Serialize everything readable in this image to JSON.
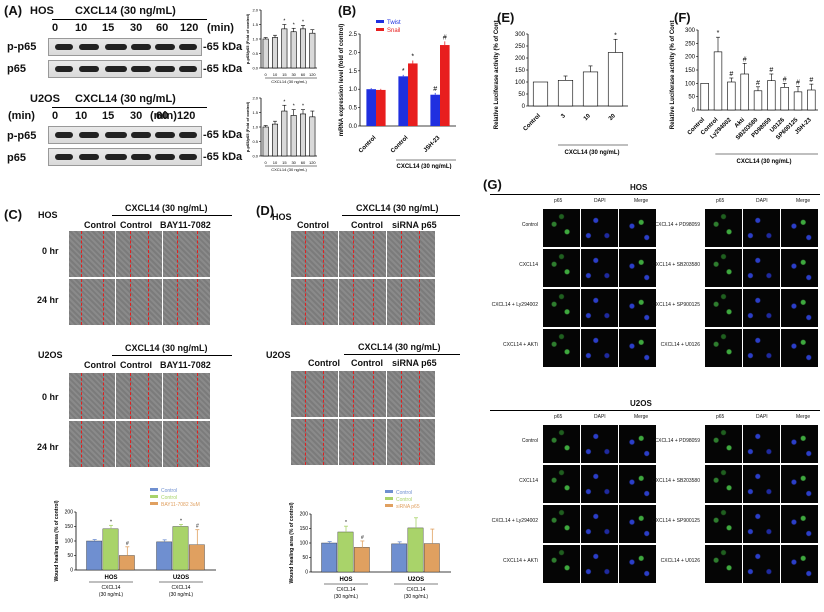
{
  "panels": {
    "A": "(A)",
    "B": "(B)",
    "C": "(C)",
    "D": "(D)",
    "E": "(E)",
    "F": "(F)",
    "G": "(G)"
  },
  "westernA": {
    "hos": {
      "cell": "HOS",
      "treatment": "CXCL14 (30 ng/mL)",
      "doses": [
        "0",
        "10",
        "15",
        "30",
        "60",
        "120"
      ],
      "unit": "(min)",
      "rows": [
        {
          "label": "p-p65",
          "kda": "-65 kDa"
        },
        {
          "label": "p65",
          "kda": "-65 kDa"
        }
      ]
    },
    "u2os": {
      "cell": "U2OS",
      "treatment": "CXCL14 (30 ng/mL)",
      "time_label": "(min)",
      "doses": [
        "0",
        "10",
        "15",
        "30",
        "60",
        "120"
      ],
      "unit": "(min)",
      "rows": [
        {
          "label": "p-p65",
          "kda": "-65 kDa"
        },
        {
          "label": "p65",
          "kda": "-65 kDa"
        }
      ]
    }
  },
  "chart_data": [
    {
      "id": "A_top",
      "type": "bar",
      "categories": [
        "0",
        "10",
        "15",
        "30",
        "60",
        "120"
      ],
      "values": [
        1.0,
        1.05,
        1.35,
        1.25,
        1.35,
        1.2
      ],
      "errors": [
        0.05,
        0.08,
        0.15,
        0.12,
        0.12,
        0.12
      ],
      "ylabel": "p-p65/p65 (Fold of control)",
      "xlabel": "CXCL14 (30 ng/mL)",
      "ylim": [
        0,
        2
      ],
      "ticks": [
        "0.0",
        "0.5",
        "1.0",
        "1.5",
        "2.0"
      ],
      "sig": [
        false,
        false,
        true,
        true,
        true,
        false
      ]
    },
    {
      "id": "A_bot",
      "type": "bar",
      "categories": [
        "0",
        "10",
        "15",
        "30",
        "60",
        "120"
      ],
      "values": [
        1.0,
        1.1,
        1.55,
        1.4,
        1.45,
        1.35
      ],
      "errors": [
        0.05,
        0.1,
        0.2,
        0.2,
        0.15,
        0.2
      ],
      "ylabel": "p-p65/p65 (Fold of control)",
      "xlabel": "CXCL14 (30 ng/mL)",
      "ylim": [
        0,
        2
      ],
      "ticks": [
        "0.0",
        "0.5",
        "1.0",
        "1.5",
        "2.0"
      ],
      "sig": [
        false,
        false,
        true,
        true,
        true,
        false
      ]
    },
    {
      "id": "B",
      "type": "bar",
      "categories": [
        "Control",
        "Control",
        "JSH-23"
      ],
      "group_label": "CXCL14 (30 ng/mL)",
      "series": [
        {
          "name": "Twist",
          "color": "#1f2fe0",
          "values": [
            1.0,
            1.35,
            0.85
          ],
          "errors": [
            0.03,
            0.04,
            0.05
          ]
        },
        {
          "name": "Snail",
          "color": "#e81e1e",
          "values": [
            0.98,
            1.7,
            2.2
          ],
          "errors": [
            0.03,
            0.08,
            0.1
          ]
        }
      ],
      "sig": [
        "",
        "*",
        "#"
      ],
      "ylabel": "mRNA expression level (fold of control)",
      "ylim": [
        0,
        2.5
      ],
      "ticks": [
        "0.0",
        "0.5",
        "1.0",
        "1.5",
        "2.0",
        "2.5"
      ]
    },
    {
      "id": "E",
      "type": "bar",
      "categories": [
        "Control",
        "3",
        "10",
        "30"
      ],
      "values": [
        100,
        107,
        142,
        223
      ],
      "errors": [
        0,
        18,
        25,
        55
      ],
      "sig": [
        "",
        "",
        "",
        "*"
      ],
      "ylabel": "Relative Luciferase activity (% of Control)",
      "group_label": "CXCL14 (30 ng/mL)",
      "ylim": [
        0,
        300
      ],
      "ticks": [
        "0",
        "50",
        "100",
        "150",
        "200",
        "250",
        "300"
      ]
    },
    {
      "id": "F",
      "type": "bar",
      "categories": [
        "Control",
        "Control",
        "Ly294002",
        "Akti",
        "SB203580",
        "PD98059",
        "U0126",
        "SP600125",
        "JSH-23"
      ],
      "values": [
        100,
        218,
        105,
        135,
        72,
        110,
        85,
        68,
        75
      ],
      "errors": [
        0,
        55,
        15,
        40,
        15,
        25,
        15,
        20,
        22
      ],
      "sig": [
        "",
        "*",
        "#",
        "#",
        "#",
        "#",
        "#",
        "#",
        "#"
      ],
      "ylabel": "Relative Luciferase activity (% of Control)",
      "group_label": "CXCL14 (30 ng/mL)",
      "ylim": [
        0,
        300
      ],
      "ticks": [
        "0",
        "50",
        "100",
        "150",
        "200",
        "250",
        "300"
      ]
    },
    {
      "id": "C_chart",
      "type": "bar",
      "categories": [
        "HOS",
        "U2OS"
      ],
      "subtitles": [
        "CXCL14 (30 ng/mL)",
        "CXCL14 (30 ng/mL)"
      ],
      "series": [
        {
          "name": "Control",
          "color": "#6f8fd0",
          "values": [
            100,
            97
          ],
          "errors": [
            5,
            7
          ]
        },
        {
          "name": "Control",
          "color": "#a9d36a",
          "values": [
            142,
            150
          ],
          "errors": [
            12,
            7
          ]
        },
        {
          "name": "BAY11-7082 3uM",
          "color": "#e0a060",
          "values": [
            50,
            87
          ],
          "errors": [
            30,
            52
          ]
        }
      ],
      "sig": [
        [
          "",
          "*",
          "#"
        ],
        [
          "",
          "*",
          "#"
        ]
      ],
      "ylabel": "Wound healing area (% of control)",
      "ylim": [
        0,
        200
      ],
      "ticks": [
        "0",
        "50",
        "100",
        "150",
        "200"
      ]
    },
    {
      "id": "D_chart",
      "type": "bar",
      "categories": [
        "HOS",
        "U2OS"
      ],
      "subtitles": [
        "CXCL14 (30 ng/mL)",
        "CXCL14 (30 ng/mL)"
      ],
      "series": [
        {
          "name": "Control",
          "color": "#6f8fd0",
          "values": [
            100,
            97
          ],
          "errors": [
            5,
            7
          ]
        },
        {
          "name": "Control",
          "color": "#a9d36a",
          "values": [
            138,
            152
          ],
          "errors": [
            20,
            35
          ]
        },
        {
          "name": "siRNA p65",
          "color": "#e0a060",
          "values": [
            85,
            98
          ],
          "errors": [
            22,
            50
          ]
        }
      ],
      "sig": [
        [
          "",
          "*",
          "#"
        ],
        [
          "",
          "",
          ""
        ]
      ],
      "ylabel": "Wound healing area (% of control)",
      "ylim": [
        0,
        200
      ],
      "ticks": [
        "0",
        "50",
        "100",
        "150",
        "200"
      ]
    }
  ],
  "woundC": {
    "top": {
      "cell": "HOS",
      "treatment": "CXCL14 (30 ng/mL)",
      "cols": [
        "Control",
        "Control",
        "BAY11-7082"
      ],
      "rows": [
        "0 hr",
        "24 hr"
      ]
    },
    "bottom": {
      "cell": "U2OS",
      "treatment": "CXCL14 (30 ng/mL)",
      "cols": [
        "Control",
        "Control",
        "BAY11-7082"
      ],
      "rows": [
        "0 hr",
        "24 hr"
      ]
    }
  },
  "woundD": {
    "top": {
      "cell": "HOS",
      "treatment": "CXCL14 (30 ng/mL)",
      "cols": [
        "Control",
        "Control",
        "siRNA p65"
      ]
    },
    "bottom": {
      "cell": "U2OS",
      "treatment": "CXCL14 (30 ng/mL)",
      "cols": [
        "Control",
        "Control",
        "siRNA p65"
      ]
    }
  },
  "panelG": {
    "sections": [
      {
        "title": "HOS",
        "headers": [
          "p65",
          "DAPI",
          "Merge"
        ],
        "left": [
          "Control",
          "CXCL14",
          "CXCL14 + Ly294002",
          "CXCL14 + AKTi"
        ],
        "right": [
          "CXCL14 + PD98059",
          "CXCL14 + SB203580",
          "CXCL14 + SP900125",
          "CXCL14 + U0126"
        ]
      },
      {
        "title": "U2OS",
        "headers": [
          "p65",
          "DAPI",
          "Merge"
        ],
        "left": [
          "Control",
          "CXCL14",
          "CXCL14 + Ly294002",
          "CXCL14 + AKTi"
        ],
        "right": [
          "CXCL14 + PD98059",
          "CXCL14 + SB203580",
          "CXCL14 + SP900125",
          "CXCL14 + U0126"
        ]
      }
    ]
  },
  "colors": {
    "twist": "#1f2fe0",
    "snail": "#e81e1e",
    "bar_grey": "#d9d9d9",
    "control_blue": "#6f8fd0",
    "cxcl_green": "#a9d36a",
    "inhib_orange": "#e0a060",
    "p65_green": "#3ea83e",
    "dapi_blue": "#2b3ec8"
  }
}
